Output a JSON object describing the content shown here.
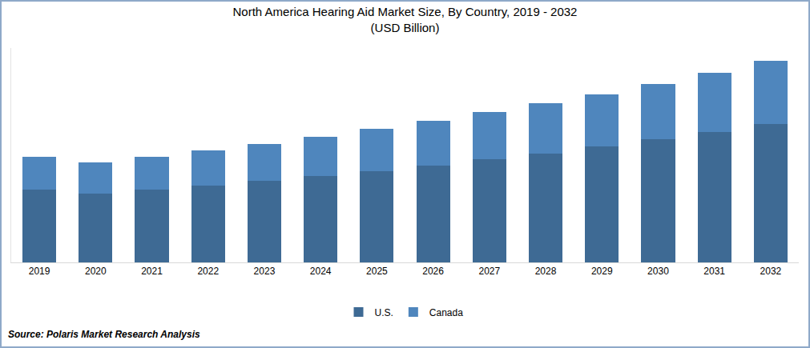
{
  "chart_data": {
    "type": "bar",
    "title": "North America Hearing Aid Market Size, By Country, 2019 - 2032",
    "subtitle": "(USD Billion)",
    "categories": [
      "2019",
      "2020",
      "2021",
      "2022",
      "2023",
      "2024",
      "2025",
      "2026",
      "2027",
      "2028",
      "2029",
      "2030",
      "2031",
      "2032"
    ],
    "series": [
      {
        "name": "U.S.",
        "color": "#3e6a94",
        "values": [
          1.84,
          1.74,
          1.84,
          1.94,
          2.06,
          2.18,
          2.3,
          2.44,
          2.6,
          2.74,
          2.92,
          3.1,
          3.28,
          3.48
        ]
      },
      {
        "name": "Canada",
        "color": "#4f86bd",
        "values": [
          0.82,
          0.78,
          0.82,
          0.88,
          0.92,
          0.98,
          1.06,
          1.12,
          1.18,
          1.26,
          1.32,
          1.4,
          1.5,
          1.6
        ]
      }
    ],
    "stacked": true,
    "ylim": [
      0,
      5.4
    ],
    "grid": false,
    "legend": "bottom",
    "tick_labels": "x",
    "annotations": [
      "Source: Polaris Market Research Analysis"
    ]
  }
}
